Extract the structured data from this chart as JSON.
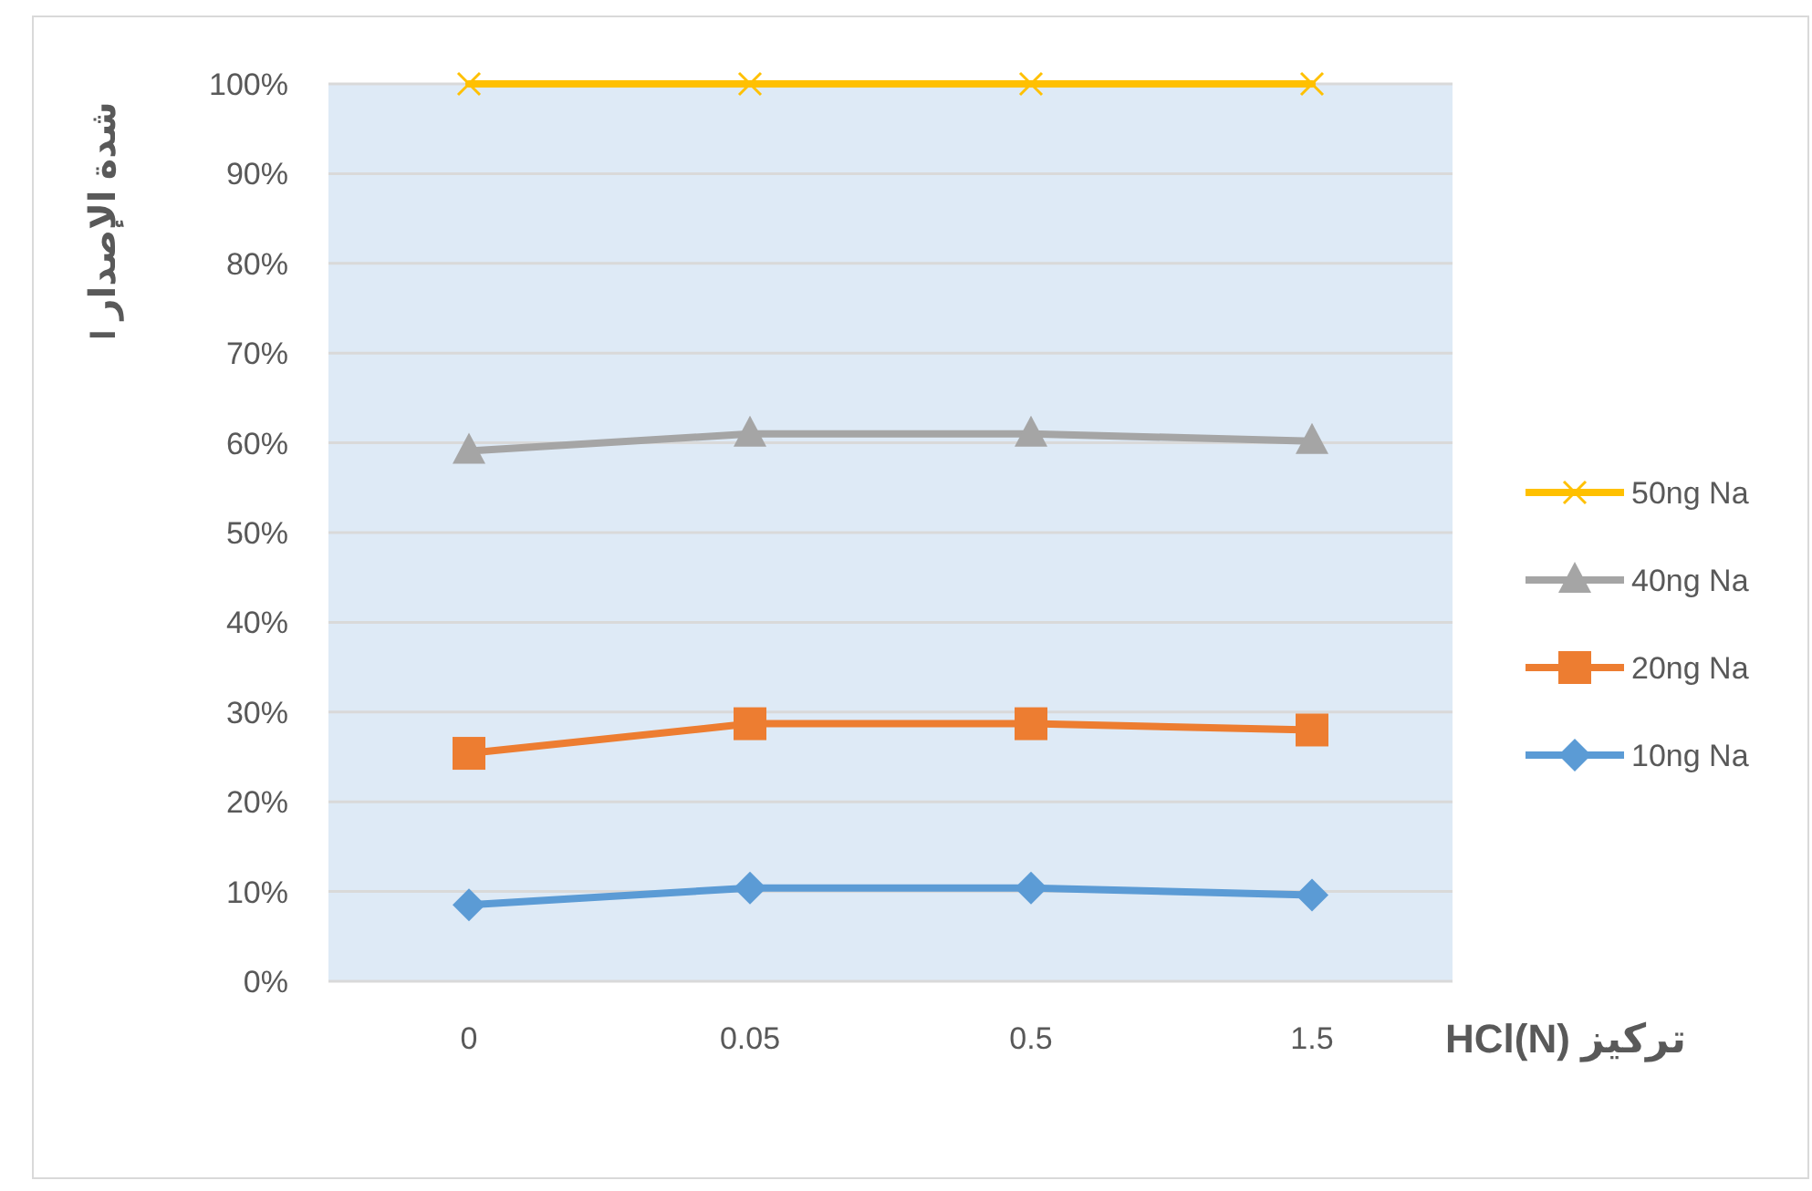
{
  "chart_data": {
    "type": "line",
    "xlabel": "تركيز HCl(N)",
    "ylabel": "شدة الإصدار I",
    "categories": [
      "0",
      "0.05",
      "0.5",
      "1.5"
    ],
    "series": [
      {
        "name": "10ng Na",
        "color": "#5b9bd5",
        "marker": "diamond",
        "values": [
          8.5,
          10.4,
          10.4,
          9.6
        ]
      },
      {
        "name": "20ng Na",
        "color": "#ed7d31",
        "marker": "square",
        "values": [
          25.4,
          28.7,
          28.7,
          28.0
        ]
      },
      {
        "name": "40ng Na",
        "color": "#a5a5a5",
        "marker": "triangle",
        "values": [
          59.1,
          61.0,
          61.0,
          60.2
        ]
      },
      {
        "name": "50ng Na",
        "color": "#ffc000",
        "marker": "cross",
        "values": [
          100,
          100,
          100,
          100
        ]
      }
    ],
    "ylim": [
      0,
      100
    ],
    "yticks": [
      {
        "value": 0,
        "label": "0%"
      },
      {
        "value": 10,
        "label": "10%"
      },
      {
        "value": 20,
        "label": "20%"
      },
      {
        "value": 30,
        "label": "30%"
      },
      {
        "value": 40,
        "label": "40%"
      },
      {
        "value": 50,
        "label": "50%"
      },
      {
        "value": 60,
        "label": "60%"
      },
      {
        "value": 70,
        "label": "70%"
      },
      {
        "value": 80,
        "label": "80%"
      },
      {
        "value": 90,
        "label": "90%"
      },
      {
        "value": 100,
        "label": "100%"
      }
    ],
    "grid": "y",
    "legend": "right"
  }
}
